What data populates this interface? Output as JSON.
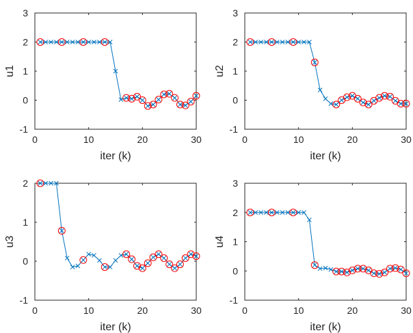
{
  "figure": {
    "background": "#ffffff",
    "colors": {
      "line": "#0072BD",
      "marker_o": "#FF0000",
      "axes": "#262626"
    }
  },
  "chart_data": [
    {
      "type": "line",
      "id": "u1",
      "xlabel": "iter (k)",
      "ylabel": "u1",
      "xlim": [
        0,
        30
      ],
      "ylim": [
        -1,
        3
      ],
      "xticks": [
        0,
        10,
        20,
        30
      ],
      "yticks": [
        -1,
        0,
        1,
        2,
        3
      ],
      "series": [
        {
          "name": "u1",
          "marker": "x",
          "x": [
            1,
            2,
            3,
            4,
            5,
            6,
            7,
            8,
            9,
            10,
            11,
            12,
            13,
            14,
            15,
            16,
            17,
            18,
            19,
            20,
            21,
            22,
            23,
            24,
            25,
            26,
            27,
            28,
            29,
            30
          ],
          "values": [
            2,
            2,
            2,
            2,
            2,
            2,
            2,
            2,
            2,
            2,
            2,
            2,
            2,
            2,
            1,
            0.02,
            0.08,
            0.05,
            0.12,
            0.0,
            -0.2,
            -0.15,
            0.02,
            0.2,
            0.22,
            0.08,
            -0.15,
            -0.18,
            -0.05,
            0.15
          ]
        }
      ],
      "circled_x": [
        1,
        5,
        9,
        13,
        17,
        18,
        19,
        20,
        21,
        22,
        23,
        24,
        25,
        26,
        27,
        28,
        29,
        30
      ]
    },
    {
      "type": "line",
      "id": "u2",
      "xlabel": "iter (k)",
      "ylabel": "u2",
      "xlim": [
        0,
        30
      ],
      "ylim": [
        -1,
        3
      ],
      "xticks": [
        0,
        10,
        20,
        30
      ],
      "yticks": [
        -1,
        0,
        1,
        2,
        3
      ],
      "series": [
        {
          "name": "u2",
          "marker": "x",
          "x": [
            1,
            2,
            3,
            4,
            5,
            6,
            7,
            8,
            9,
            10,
            11,
            12,
            13,
            14,
            15,
            16,
            17,
            18,
            19,
            20,
            21,
            22,
            23,
            24,
            25,
            26,
            27,
            28,
            29,
            30
          ],
          "values": [
            2,
            2,
            2,
            2,
            2,
            2,
            2,
            2,
            2,
            2,
            2,
            2,
            1.3,
            0.35,
            0.05,
            -0.12,
            -0.15,
            0.0,
            0.1,
            0.15,
            0.05,
            -0.08,
            -0.15,
            -0.02,
            0.08,
            0.15,
            0.12,
            -0.02,
            -0.12,
            -0.12
          ]
        }
      ],
      "circled_x": [
        1,
        5,
        9,
        13,
        17,
        18,
        19,
        20,
        21,
        22,
        23,
        24,
        25,
        26,
        27,
        28,
        29,
        30
      ]
    },
    {
      "type": "line",
      "id": "u3",
      "xlabel": "iter (k)",
      "ylabel": "u3",
      "xlim": [
        0,
        30
      ],
      "ylim": [
        -1,
        2
      ],
      "xticks": [
        0,
        10,
        20,
        30
      ],
      "yticks": [
        -1,
        0,
        1,
        2
      ],
      "series": [
        {
          "name": "u3",
          "marker": "x",
          "x": [
            1,
            2,
            3,
            4,
            5,
            6,
            7,
            8,
            9,
            10,
            11,
            12,
            13,
            14,
            15,
            16,
            17,
            18,
            19,
            20,
            21,
            22,
            23,
            24,
            25,
            26,
            27,
            28,
            29,
            30
          ],
          "values": [
            2,
            2,
            2,
            2,
            0.78,
            0.08,
            -0.15,
            -0.12,
            0.03,
            0.18,
            0.15,
            0.02,
            -0.15,
            -0.15,
            0.02,
            0.15,
            0.18,
            0.05,
            -0.12,
            -0.18,
            -0.05,
            0.1,
            0.18,
            0.08,
            -0.08,
            -0.18,
            -0.08,
            0.08,
            0.18,
            0.13
          ]
        }
      ],
      "circled_x": [
        1,
        5,
        9,
        13,
        17,
        18,
        19,
        20,
        21,
        22,
        23,
        24,
        25,
        26,
        27,
        28,
        29,
        30
      ]
    },
    {
      "type": "line",
      "id": "u4",
      "xlabel": "iter (k)",
      "ylabel": "u4",
      "xlim": [
        0,
        30
      ],
      "ylim": [
        -1,
        3
      ],
      "xticks": [
        0,
        10,
        20,
        30
      ],
      "yticks": [
        -1,
        0,
        1,
        2,
        3
      ],
      "series": [
        {
          "name": "u4",
          "marker": "x",
          "x": [
            1,
            2,
            3,
            4,
            5,
            6,
            7,
            8,
            9,
            10,
            11,
            12,
            13,
            14,
            15,
            16,
            17,
            18,
            19,
            20,
            21,
            22,
            23,
            24,
            25,
            26,
            27,
            28,
            29,
            30
          ],
          "values": [
            2,
            2,
            2,
            2,
            2,
            2,
            2,
            2,
            2,
            2,
            2,
            1.75,
            0.2,
            0.08,
            0.1,
            0.05,
            -0.02,
            -0.02,
            -0.05,
            0.02,
            0.08,
            0.08,
            0.02,
            -0.08,
            -0.1,
            -0.05,
            0.08,
            0.1,
            0.05,
            -0.08
          ]
        }
      ],
      "circled_x": [
        1,
        5,
        9,
        13,
        17,
        18,
        19,
        20,
        21,
        22,
        23,
        24,
        25,
        26,
        27,
        28,
        29,
        30
      ]
    }
  ]
}
